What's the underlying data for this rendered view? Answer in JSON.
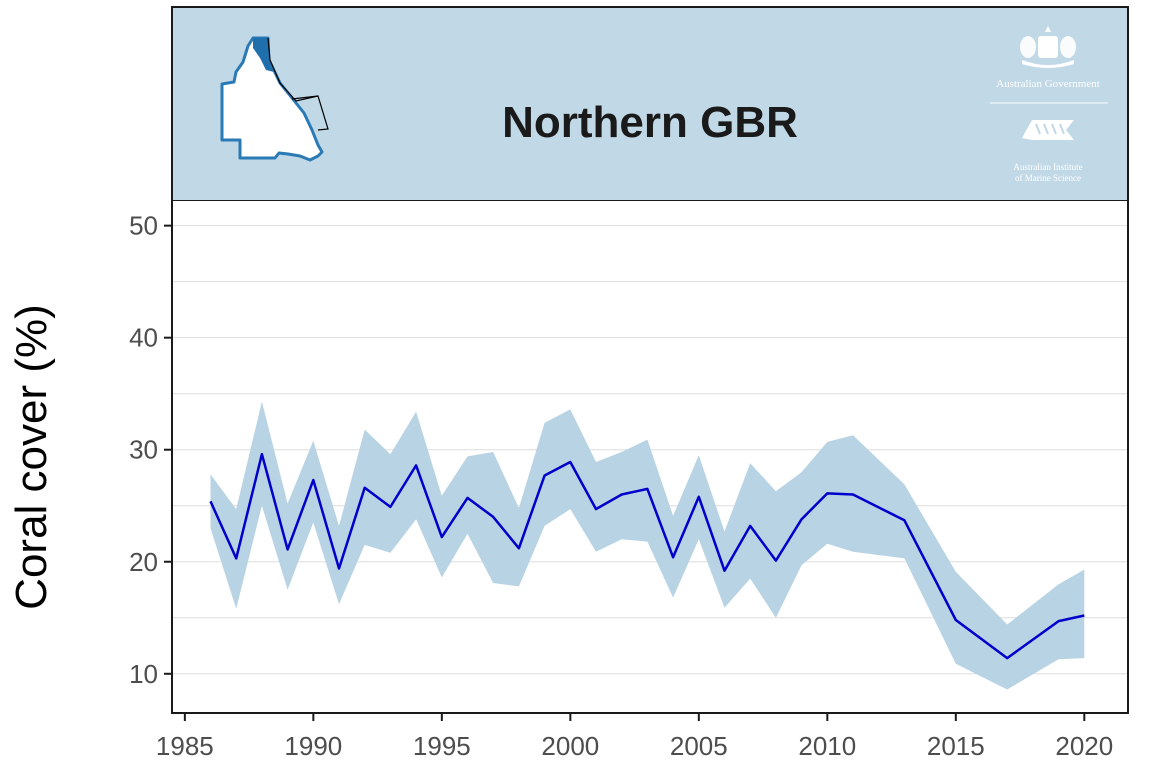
{
  "header": {
    "title": "Northern GBR",
    "background_color": "#c1d8e7",
    "logo_government_text": "Australian Government",
    "logo_institute_line1": "Australian Institute",
    "logo_institute_line2": "of Marine Science"
  },
  "chart_data": {
    "type": "line",
    "title": "Northern GBR",
    "xlabel": "",
    "ylabel": "Coral cover (%)",
    "xlim": [
      1984.5,
      2021.7
    ],
    "ylim": [
      6.5,
      52.2
    ],
    "xticks": [
      1985,
      1990,
      1995,
      2000,
      2005,
      2010,
      2015,
      2020
    ],
    "yticks": [
      10,
      20,
      30,
      40,
      50
    ],
    "grid": "horizontal",
    "line_color": "#0000cc",
    "band_color": "#b8d3e4",
    "series": [
      {
        "x": [
          1986,
          1987,
          1988,
          1989,
          1990,
          1991,
          1992,
          1993,
          1994,
          1995,
          1996,
          1997,
          1998,
          1999,
          2000,
          2001,
          2002,
          2003,
          2004,
          2005,
          2006,
          2007,
          2008,
          2009,
          2010,
          2011,
          2013,
          2015,
          2017,
          2019,
          2020
        ],
        "y": [
          25.4,
          20.3,
          29.6,
          21.1,
          27.3,
          19.4,
          26.6,
          24.9,
          28.6,
          22.2,
          25.7,
          24.0,
          21.2,
          27.7,
          28.9,
          24.7,
          26.0,
          26.5,
          20.4,
          25.8,
          19.2,
          23.2,
          20.1,
          23.8,
          26.1,
          26.0,
          23.7,
          14.8,
          11.4,
          14.7,
          15.2
        ],
        "lower": [
          23.0,
          15.8,
          25.0,
          17.5,
          23.5,
          16.2,
          21.5,
          20.8,
          23.8,
          18.6,
          22.5,
          18.1,
          17.8,
          23.2,
          24.7,
          20.9,
          22.0,
          21.8,
          16.8,
          22.0,
          15.9,
          18.5,
          15.0,
          19.7,
          21.6,
          20.9,
          20.3,
          10.9,
          8.6,
          11.3,
          11.4
        ],
        "upper": [
          27.8,
          24.7,
          34.3,
          25.2,
          30.8,
          23.2,
          31.8,
          29.6,
          33.4,
          25.9,
          29.4,
          29.8,
          24.8,
          32.4,
          33.6,
          28.9,
          29.8,
          30.9,
          24.1,
          29.5,
          22.7,
          28.8,
          26.3,
          28.0,
          30.7,
          31.3,
          26.9,
          19.1,
          14.4,
          18.0,
          19.3
        ]
      }
    ]
  }
}
